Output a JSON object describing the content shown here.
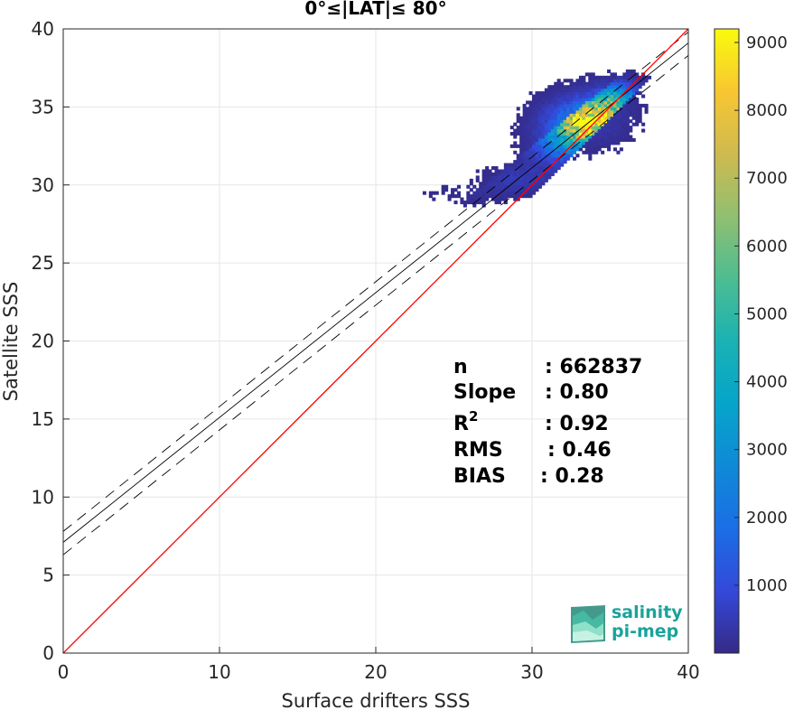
{
  "chart_data": {
    "type": "heatmap",
    "title": "0°≤|LAT|≤ 80°",
    "xlabel": "Surface drifters SSS",
    "ylabel": "Satellite SSS",
    "xlim": [
      0,
      40
    ],
    "ylim": [
      0,
      40
    ],
    "xticks": [
      "0",
      "10",
      "20",
      "30",
      "40"
    ],
    "yticks": [
      "0",
      "5",
      "10",
      "15",
      "20",
      "25",
      "30",
      "35",
      "40"
    ],
    "grid": true,
    "colorbar": {
      "range": [
        0,
        9200
      ],
      "ticks": [
        "1000",
        "2000",
        "3000",
        "4000",
        "5000",
        "6000",
        "7000",
        "8000",
        "9000"
      ],
      "colormap": "parula"
    },
    "lines": {
      "identity": {
        "color": "#ff0000",
        "slope": 1.0,
        "intercept": 0
      },
      "regression": {
        "color": "#000000",
        "slope": 0.8,
        "intercept": 7.1
      },
      "upper_bound": {
        "color": "#000000",
        "slope": 0.8,
        "intercept": 7.8,
        "style": "dashed"
      },
      "lower_bound": {
        "color": "#000000",
        "slope": 0.8,
        "intercept": 6.3,
        "style": "dashed"
      }
    },
    "density_clusters": [
      {
        "x": 33.5,
        "y": 33.9,
        "sx": 1.6,
        "sy": 1.0,
        "peak": 9000
      },
      {
        "x": 35.2,
        "y": 35.3,
        "sx": 1.1,
        "sy": 0.7,
        "peak": 3500
      },
      {
        "x": 31.5,
        "y": 32.4,
        "sx": 1.3,
        "sy": 0.9,
        "peak": 1200
      },
      {
        "x": 29.0,
        "y": 30.3,
        "sx": 1.6,
        "sy": 0.6,
        "peak": 500
      },
      {
        "x": 25.0,
        "y": 29.4,
        "sx": 2.0,
        "sy": 0.5,
        "peak": 200
      }
    ],
    "stats": [
      {
        "label": "n",
        "value": ": 662837"
      },
      {
        "label": "Slope",
        "value": ": 0.80"
      },
      {
        "label": "R",
        "sup": "2",
        "value": ": 0.92"
      },
      {
        "label": "RMS",
        "value": ": 0.46"
      },
      {
        "label": "BIAS",
        "value": ": 0.28"
      }
    ]
  },
  "logo": {
    "line1": "salinity",
    "line2": "pi-mep"
  }
}
